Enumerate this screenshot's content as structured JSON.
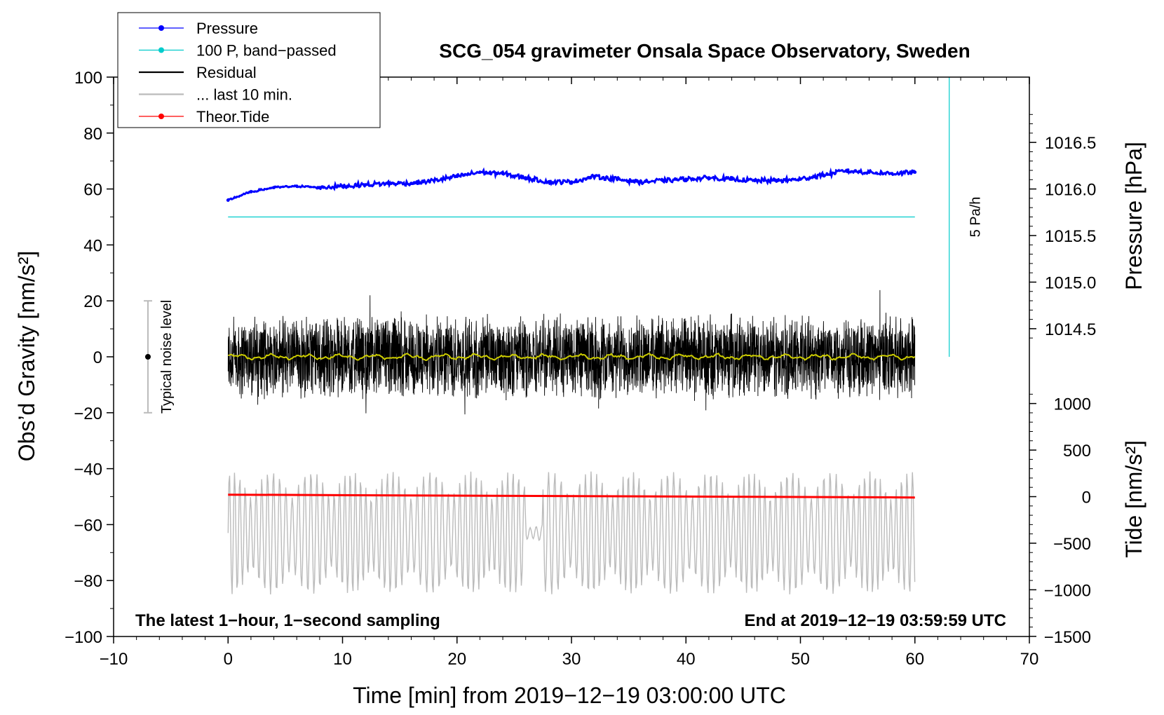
{
  "chart_data": {
    "type": "line",
    "title": "SCG_054 gravimeter Onsala Space Observatory, Sweden",
    "xlabel": "Time [min] from 2019−12−19 03:00:00 UTC",
    "ylabel_left": "Obs’d Gravity [nm/s²]",
    "ylabel_pressure": "Pressure [hPa]",
    "ylabel_tide": "Tide [nm/s²]",
    "xlim": [
      -10,
      70
    ],
    "ylim": [
      -100,
      100
    ],
    "x_ticks": [
      {
        "v": -10,
        "label": "−10"
      },
      {
        "v": 0,
        "label": "0"
      },
      {
        "v": 10,
        "label": "10"
      },
      {
        "v": 20,
        "label": "20"
      },
      {
        "v": 30,
        "label": "30"
      },
      {
        "v": 40,
        "label": "40"
      },
      {
        "v": 50,
        "label": "50"
      },
      {
        "v": 60,
        "label": "60"
      },
      {
        "v": 70,
        "label": "70"
      }
    ],
    "y_ticks": [
      {
        "v": 100,
        "label": "100"
      },
      {
        "v": 80,
        "label": "80"
      },
      {
        "v": 60,
        "label": "60"
      },
      {
        "v": 40,
        "label": "40"
      },
      {
        "v": 20,
        "label": "20"
      },
      {
        "v": 0,
        "label": "0"
      },
      {
        "v": -20,
        "label": "−20"
      },
      {
        "v": -40,
        "label": "−40"
      },
      {
        "v": -60,
        "label": "−60"
      },
      {
        "v": -80,
        "label": "−80"
      },
      {
        "v": -100,
        "label": "−100"
      }
    ],
    "pressure_axis": {
      "ticks": [
        {
          "v": 1016.5,
          "label": "1016.5"
        },
        {
          "v": 1016.0,
          "label": "1016.0"
        },
        {
          "v": 1015.5,
          "label": "1015.5"
        },
        {
          "v": 1015.0,
          "label": "1015.0"
        },
        {
          "v": 1014.5,
          "label": "1014.5"
        }
      ],
      "ref_hpa": 1016.0,
      "ref_grav": 60,
      "grav_per_hpa": 33.3
    },
    "tide_axis": {
      "ticks": [
        {
          "v": 1000,
          "label": "1000"
        },
        {
          "v": 500,
          "label": "500"
        },
        {
          "v": 0,
          "label": "0"
        },
        {
          "v": -500,
          "label": "−500"
        },
        {
          "v": -1000,
          "label": "−1000"
        },
        {
          "v": -1500,
          "label": "−1500"
        }
      ],
      "zero_grav": -50,
      "grav_per_unit": 0.0333
    },
    "series": [
      {
        "name": "Pressure",
        "color": "#0000ff",
        "x": [
          0,
          2,
          4,
          6,
          8,
          10,
          12,
          14,
          16,
          18,
          20,
          22,
          24,
          26,
          28,
          30,
          32,
          34,
          36,
          38,
          40,
          42,
          44,
          46,
          48,
          50,
          52,
          54,
          56,
          58,
          60
        ],
        "y": [
          56,
          59,
          60.5,
          61,
          60.5,
          61,
          61.5,
          62,
          62,
          63,
          64.5,
          66,
          65.5,
          64,
          62.5,
          62.5,
          64.5,
          63.5,
          62.5,
          63,
          63.5,
          64,
          63.5,
          63,
          63,
          63.5,
          65,
          66.5,
          66,
          65.5,
          66
        ]
      },
      {
        "name": "100 P, band−passed",
        "color": "#00cccc",
        "x": [
          0,
          60
        ],
        "y": [
          50,
          50
        ]
      },
      {
        "name": "Residual",
        "color": "#000000",
        "amplitude": 26,
        "x_range": [
          0,
          60
        ]
      },
      {
        "name": "Residual smoothed",
        "color": "#cccc00",
        "x_range": [
          0,
          60
        ]
      },
      {
        "name": "... last 10 min.",
        "color": "#bbbbbb",
        "x_range": [
          0,
          60
        ],
        "center": -63,
        "amplitude": 22
      },
      {
        "name": "Theor.Tide",
        "color": "#ff0000",
        "x": [
          0,
          60
        ],
        "y": [
          -49.3,
          -50.3
        ]
      }
    ],
    "rate_bar": {
      "label": "5 Pa/h",
      "x": 63,
      "y_range": [
        0,
        100
      ]
    },
    "noise_bar": {
      "label": "Typical noise level",
      "x": -7,
      "y_range": [
        -20,
        20
      ]
    },
    "legend": {
      "position": "top-left",
      "items": [
        {
          "label": "Pressure",
          "color": "#0000ff",
          "marker": true
        },
        {
          "label": "100 P, band−passed",
          "color": "#00cccc",
          "marker": true
        },
        {
          "label": "Residual",
          "color": "#000000",
          "marker": false
        },
        {
          "label": "... last 10 min.",
          "color": "#bbbbbb",
          "marker": false
        },
        {
          "label": "Theor.Tide",
          "color": "#ff0000",
          "marker": true
        }
      ]
    },
    "annotations": {
      "bottom_left": "The latest 1−hour, 1−second sampling",
      "bottom_right": "End at 2019−12−19 03:59:59 UTC"
    }
  }
}
